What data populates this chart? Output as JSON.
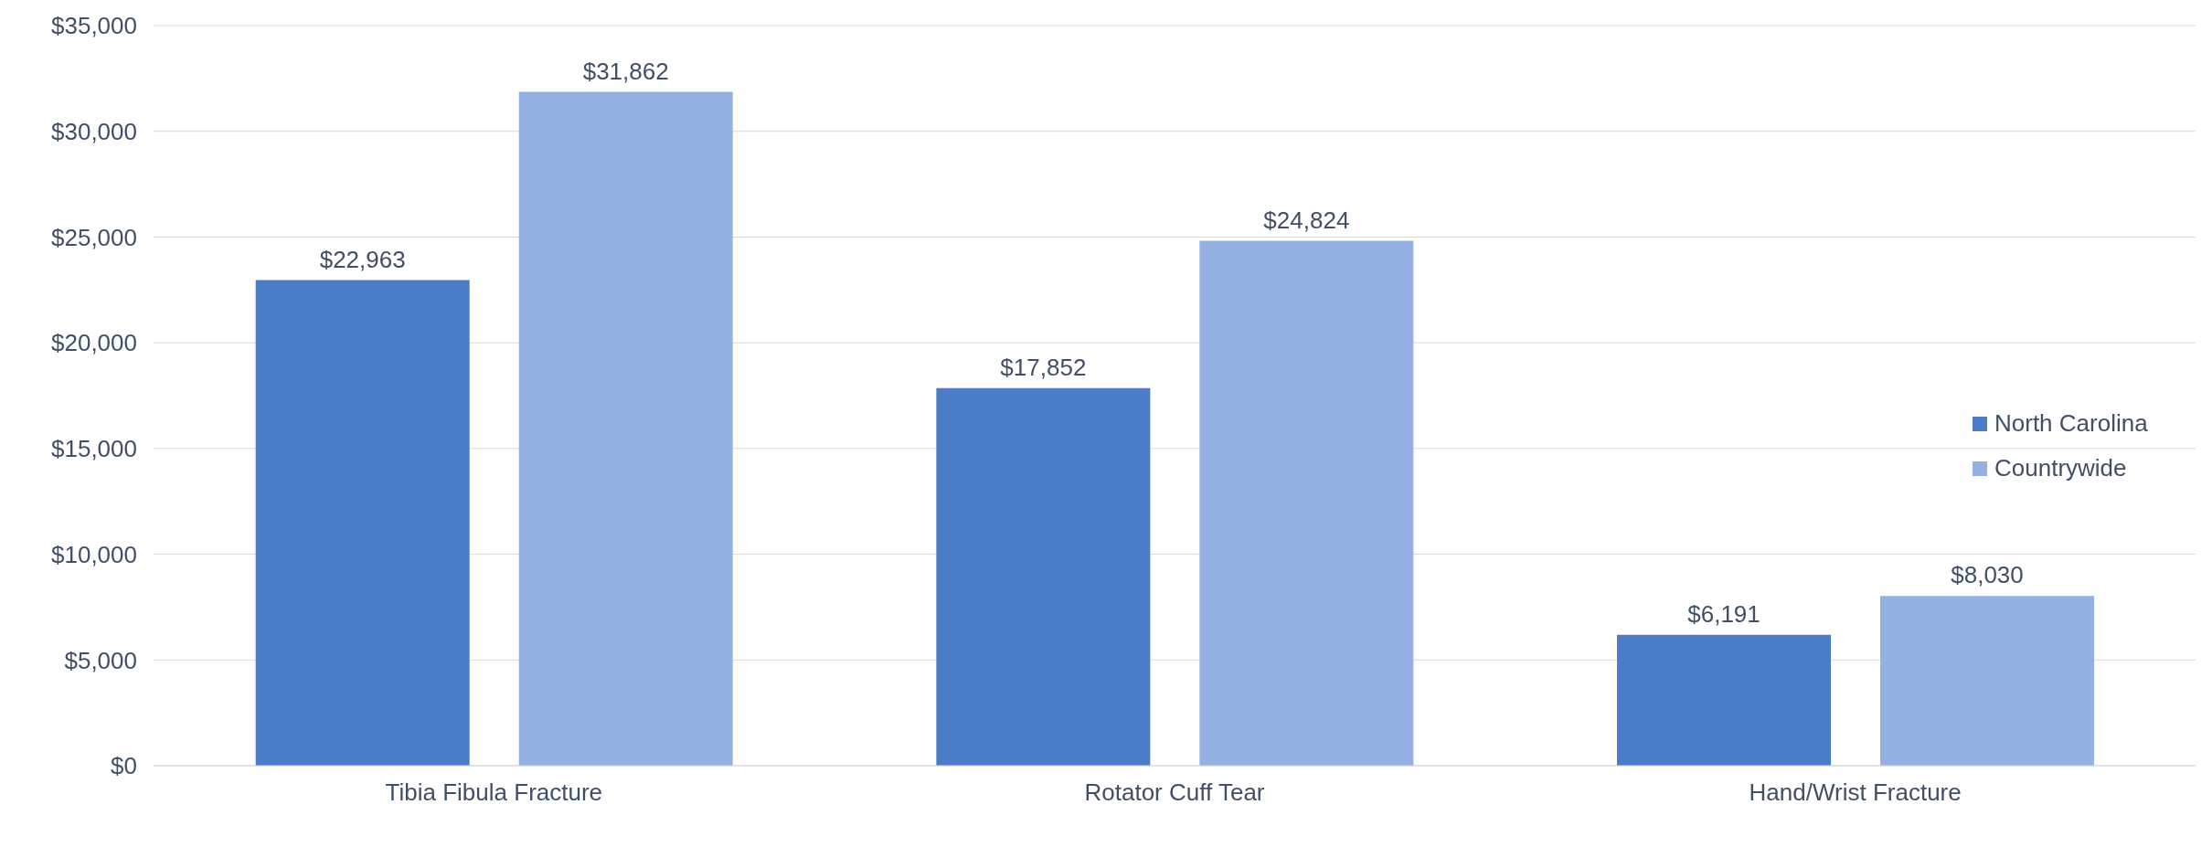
{
  "chart_data": {
    "type": "bar",
    "categories": [
      "Tibia Fibula Fracture",
      "Rotator Cuff Tear",
      "Hand/Wrist Fracture"
    ],
    "series": [
      {
        "name": "North Carolina",
        "color": "#4a7cc7",
        "values": [
          22963,
          17852,
          6191
        ],
        "value_labels": [
          "$22,963",
          "$17,852",
          "$6,191"
        ]
      },
      {
        "name": "Countrywide",
        "color": "#95b0e2",
        "values": [
          31862,
          24824,
          8030
        ],
        "value_labels": [
          "$31,862",
          "$24,824",
          "$8,030"
        ]
      }
    ],
    "ylim": [
      0,
      35000
    ],
    "yticks": [
      {
        "value": 0,
        "label": "$0"
      },
      {
        "value": 5000,
        "label": "$5,000"
      },
      {
        "value": 10000,
        "label": "$10,000"
      },
      {
        "value": 15000,
        "label": "$15,000"
      },
      {
        "value": 20000,
        "label": "$20,000"
      },
      {
        "value": 25000,
        "label": "$25,000"
      },
      {
        "value": 30000,
        "label": "$30,000"
      },
      {
        "value": 35000,
        "label": "$35,000"
      }
    ],
    "grid": "y",
    "legend": "right"
  }
}
